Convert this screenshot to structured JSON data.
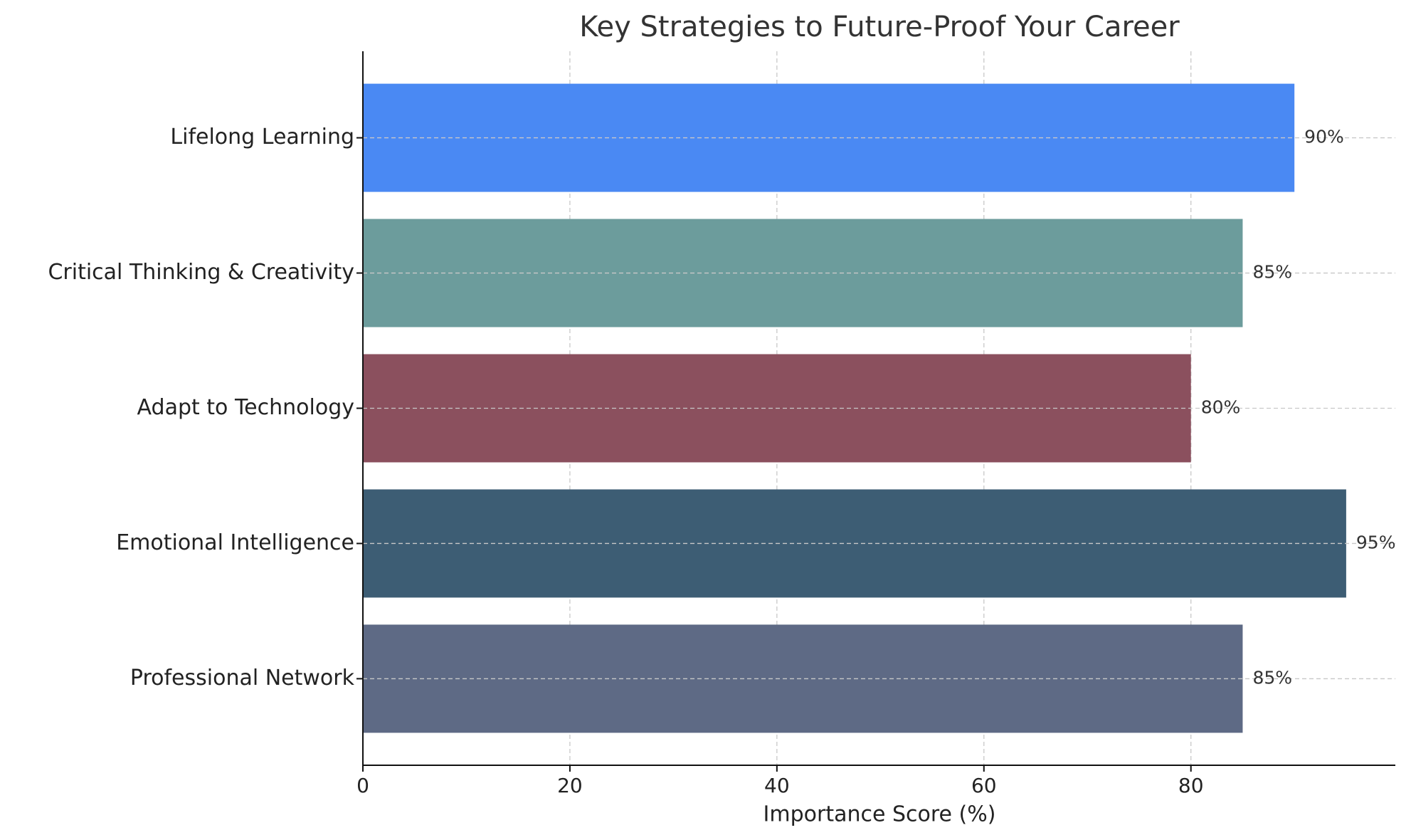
{
  "chart_data": {
    "type": "barh",
    "title": "Key Strategies to Future-Proof Your Career",
    "xlabel": "Importance Score (%)",
    "categories": [
      "Lifelong Learning",
      "Critical Thinking & Creativity",
      "Adapt to Technology",
      "Emotional Intelligence",
      "Professional Network"
    ],
    "values": [
      90,
      85,
      80,
      95,
      85
    ],
    "value_labels": [
      "90%",
      "85%",
      "80%",
      "95%",
      "85%"
    ],
    "colors": [
      "#4a89f3",
      "#6c9c9c",
      "#8b505e",
      "#3d5d74",
      "#5e6a85"
    ],
    "xlim": [
      0,
      99.75
    ],
    "xticks": [
      0,
      20,
      40,
      60,
      80
    ],
    "grid": true
  }
}
